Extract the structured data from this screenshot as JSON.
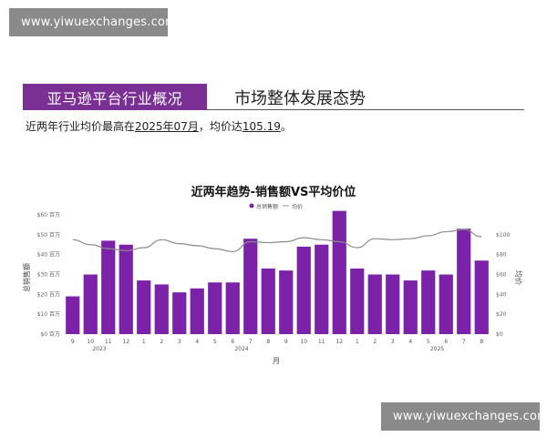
{
  "watermark": {
    "text": "www.yiwuexchanges.com"
  },
  "header": {
    "label": "亚马逊平台行业概况",
    "title": "市场整体发展态势"
  },
  "summary": {
    "prefix": "近两年行业均价最高在",
    "month": "2025年07月",
    "mid": "，均价达",
    "value": "105.19",
    "suffix": "。"
  },
  "colors": {
    "accent": "#7a2f94",
    "bar": "#7b22a8",
    "line": "#8c8c8c"
  },
  "chart_data": {
    "type": "bar",
    "title": "近两年趋势-销售额VS平均价位",
    "legend": [
      "总销售额",
      "均价"
    ],
    "legend_placement": "top-center",
    "xlabel": "月",
    "ylabel_left": "总销售额",
    "ylabel_right": "均价",
    "left_ticks": [
      "$0 百万",
      "$10 百万",
      "$20 百万",
      "$30 百万",
      "$40 百万",
      "$50 百万",
      "$60 百万"
    ],
    "right_ticks": [
      "$0",
      "$20",
      "$40",
      "$60",
      "$80",
      "$100"
    ],
    "ylim_left": [
      0,
      60
    ],
    "ylim_right": [
      0,
      120
    ],
    "categories": [
      "9",
      "10",
      "11",
      "12",
      "1",
      "2",
      "3",
      "4",
      "5",
      "6",
      "7",
      "8",
      "9",
      "10",
      "11",
      "12",
      "1",
      "2",
      "3",
      "4",
      "5",
      "6",
      "7",
      "8"
    ],
    "year_labels": [
      {
        "year": "2023",
        "index": 1.5
      },
      {
        "year": "2024",
        "index": 9.5
      },
      {
        "year": "2025",
        "index": 20.5
      }
    ],
    "series": [
      {
        "name": "总销售额",
        "kind": "bar",
        "values": [
          19,
          30,
          47,
          45,
          27,
          25,
          21,
          23,
          26,
          26,
          48,
          33,
          32,
          44,
          45,
          62,
          33,
          30,
          30,
          27,
          32,
          30,
          53,
          37
        ]
      },
      {
        "name": "均价",
        "kind": "line",
        "values": [
          95,
          90,
          86,
          84,
          87,
          95,
          91,
          89,
          86,
          83,
          93,
          92,
          93,
          97,
          95,
          93,
          87,
          96,
          95,
          96,
          99,
          103,
          105.19,
          98
        ]
      }
    ]
  }
}
